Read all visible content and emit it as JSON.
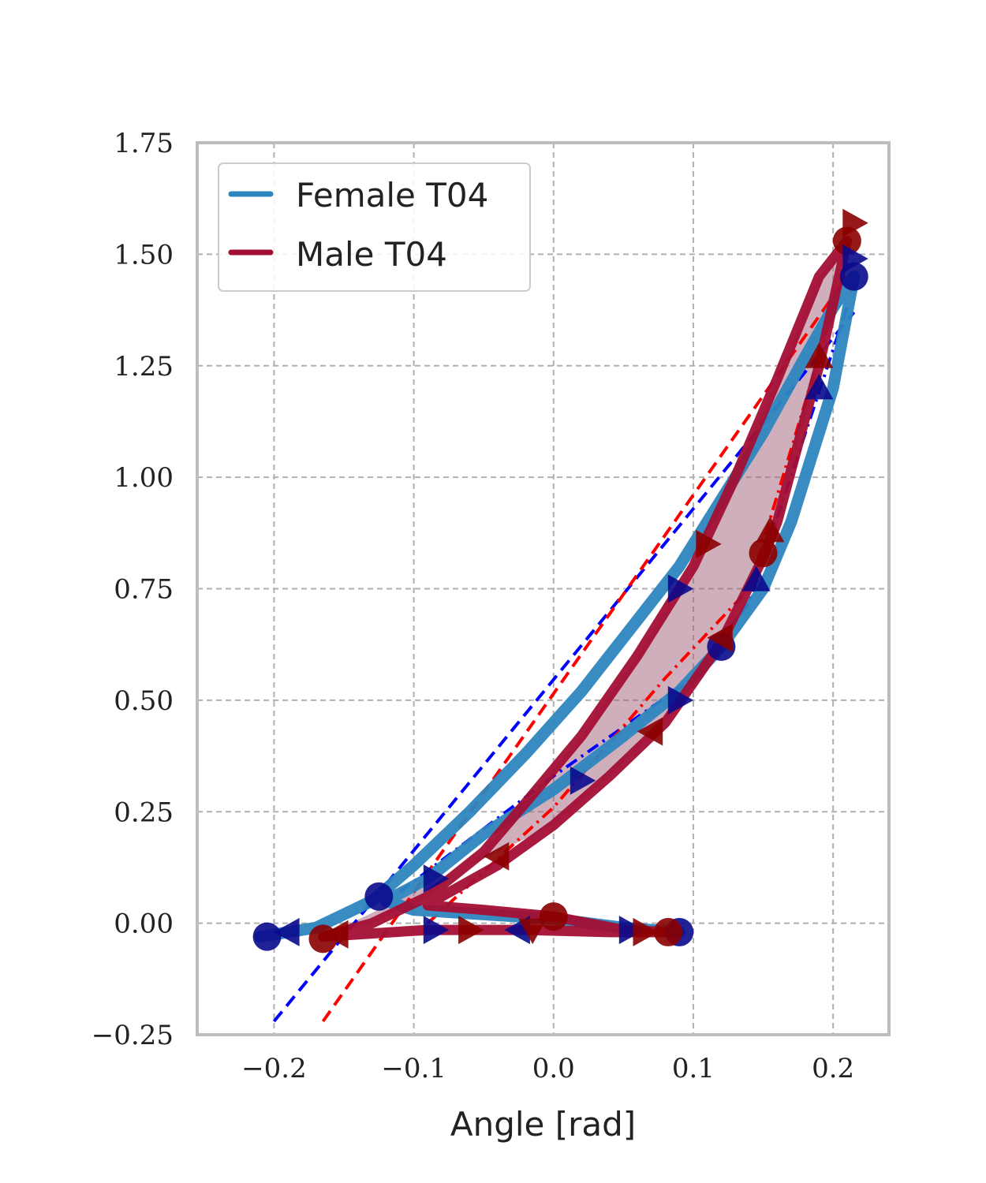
{
  "chart_data": {
    "type": "line",
    "title": "",
    "xlabel": "Angle [rad]",
    "ylabel": "",
    "xlim": [
      -0.255,
      0.24
    ],
    "ylim": [
      -0.25,
      1.75
    ],
    "grid": true,
    "legend_position": "top-left",
    "x_ticks": [
      -0.2,
      -0.1,
      0.0,
      0.1,
      0.2
    ],
    "x_tick_labels": [
      "−0.2",
      "−0.1",
      "0.0",
      "0.1",
      "0.2"
    ],
    "y_ticks": [
      -0.25,
      0.0,
      0.25,
      0.5,
      0.75,
      1.0,
      1.25,
      1.5,
      1.75
    ],
    "y_tick_labels": [
      "−0.25",
      "0.00",
      "0.25",
      "0.50",
      "0.75",
      "1.00",
      "1.25",
      "1.50",
      "1.75"
    ],
    "colors": {
      "female": "#2e86be",
      "male": "#a30f34",
      "female_marker": "#0a0a8c",
      "male_marker": "#8b0000",
      "female_fit": "#0000ff",
      "male_fit": "#ff0000",
      "band": "#a0607a",
      "grid": "#b0b0b0",
      "frame": "#bdbdbd"
    },
    "series": [
      {
        "name": "Female T04",
        "x": [
          -0.21,
          -0.17,
          -0.13,
          -0.1,
          -0.06,
          -0.02,
          0.02,
          0.06,
          0.09,
          0.12,
          0.15,
          0.18,
          0.2,
          0.215,
          0.2,
          0.17,
          0.15,
          0.12,
          0.09,
          0.05,
          0.0,
          -0.05,
          -0.09,
          -0.12,
          -0.1,
          0.0,
          0.05,
          0.09
        ],
        "y": [
          -0.03,
          -0.01,
          0.05,
          0.13,
          0.25,
          0.38,
          0.52,
          0.68,
          0.8,
          0.95,
          1.1,
          1.27,
          1.38,
          1.45,
          1.2,
          0.9,
          0.75,
          0.62,
          0.52,
          0.42,
          0.3,
          0.2,
          0.1,
          0.05,
          0.03,
          0.01,
          -0.01,
          -0.02
        ]
      },
      {
        "name": "Male T04",
        "x": [
          -0.165,
          -0.13,
          -0.09,
          -0.05,
          -0.02,
          0.02,
          0.06,
          0.1,
          0.13,
          0.16,
          0.19,
          0.21,
          0.19,
          0.16,
          0.15,
          0.12,
          0.08,
          0.04,
          0.0,
          -0.04,
          -0.08,
          -0.09,
          -0.05,
          0.0,
          0.05,
          0.08,
          0.04,
          -0.02,
          -0.09,
          -0.165
        ],
        "y": [
          -0.03,
          0.0,
          0.06,
          0.16,
          0.27,
          0.42,
          0.6,
          0.8,
          1.0,
          1.22,
          1.45,
          1.53,
          1.25,
          0.9,
          0.82,
          0.63,
          0.45,
          0.33,
          0.22,
          0.13,
          0.06,
          0.04,
          0.03,
          0.015,
          -0.015,
          -0.02,
          -0.02,
          -0.015,
          -0.015,
          -0.03
        ]
      }
    ],
    "markers": {
      "female_circles": [
        [
          -0.205,
          -0.03
        ],
        [
          -0.125,
          0.06
        ],
        [
          0.12,
          0.62
        ],
        [
          0.215,
          1.45
        ],
        [
          0.09,
          -0.02
        ]
      ],
      "male_circles": [
        [
          -0.165,
          -0.035
        ],
        [
          0.0,
          0.015
        ],
        [
          0.082,
          -0.02
        ],
        [
          0.21,
          1.53
        ],
        [
          0.15,
          0.83
        ]
      ],
      "female_triangles": [
        [
          -0.19,
          -0.02,
          "left"
        ],
        [
          -0.085,
          0.1,
          "right"
        ],
        [
          0.02,
          0.32,
          "right"
        ],
        [
          0.09,
          0.5,
          "right"
        ],
        [
          0.145,
          0.77,
          "up"
        ],
        [
          0.19,
          1.2,
          "up"
        ],
        [
          0.215,
          1.49,
          "right"
        ],
        [
          0.09,
          0.75,
          "right"
        ],
        [
          -0.085,
          -0.015,
          "right"
        ],
        [
          0.055,
          -0.015,
          "right"
        ],
        [
          -0.025,
          -0.015,
          "left"
        ]
      ],
      "male_triangles": [
        [
          -0.155,
          -0.025,
          "left"
        ],
        [
          -0.06,
          -0.015,
          "right"
        ],
        [
          0.065,
          -0.02,
          "right"
        ],
        [
          -0.015,
          -0.015,
          "down"
        ],
        [
          -0.04,
          0.15,
          "left"
        ],
        [
          0.07,
          0.43,
          "left"
        ],
        [
          0.12,
          0.64,
          "left"
        ],
        [
          0.155,
          0.88,
          "up"
        ],
        [
          0.19,
          1.27,
          "up"
        ],
        [
          0.215,
          1.57,
          "right"
        ],
        [
          0.11,
          0.85,
          "right"
        ]
      ]
    },
    "fit_lines": [
      {
        "style": "dashed",
        "color": "female_fit",
        "x": [
          -0.2,
          0.215
        ],
        "y": [
          -0.22,
          1.37
        ]
      },
      {
        "style": "dashed",
        "color": "male_fit",
        "x": [
          -0.165,
          0.21
        ],
        "y": [
          -0.22,
          1.45
        ]
      },
      {
        "style": "dashdot",
        "color": "female_fit",
        "x": [
          -0.11,
          0.0,
          0.1,
          0.14,
          0.21
        ],
        "y": [
          0.07,
          0.33,
          0.55,
          0.72,
          1.38
        ]
      },
      {
        "style": "dashdot",
        "color": "male_fit",
        "x": [
          -0.09,
          0.0,
          0.08,
          0.14,
          0.21
        ],
        "y": [
          0.0,
          0.26,
          0.55,
          0.75,
          1.48
        ]
      }
    ]
  }
}
